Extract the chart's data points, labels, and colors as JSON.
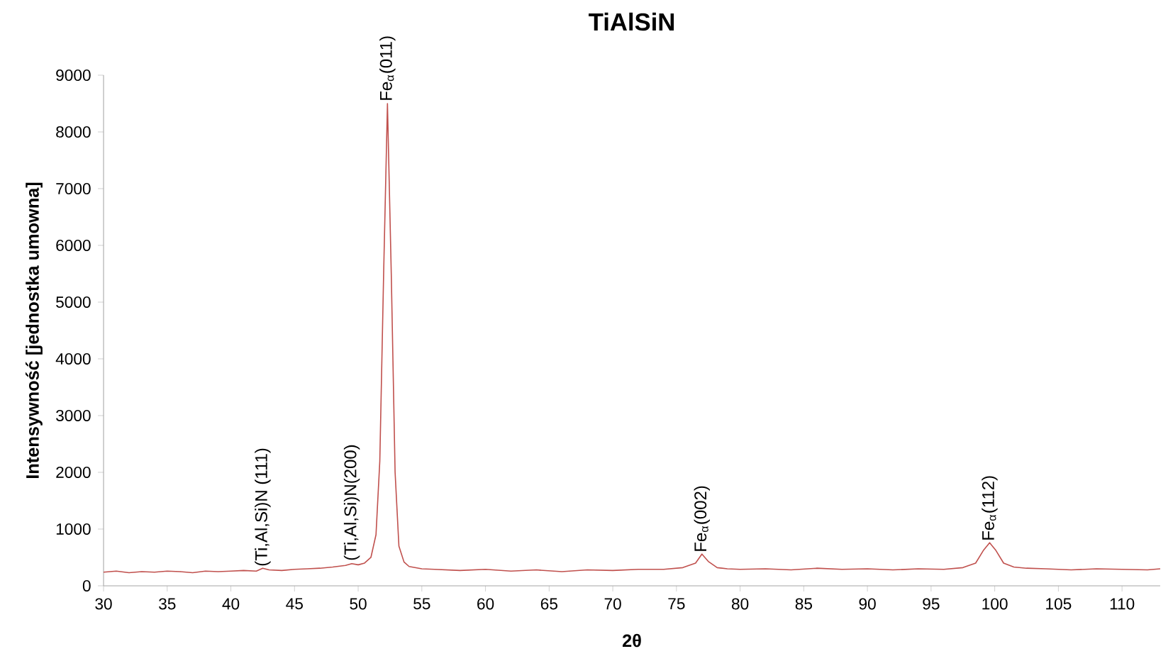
{
  "chart_data": {
    "type": "line",
    "title": "TiAlSiN",
    "xlabel": "2θ",
    "ylabel": "Intensywność [jednostka umowna]",
    "xlim": [
      30,
      113
    ],
    "ylim": [
      0,
      9000
    ],
    "xticks": [
      30,
      35,
      40,
      45,
      50,
      55,
      60,
      65,
      70,
      75,
      80,
      85,
      90,
      95,
      100,
      105,
      110
    ],
    "yticks": [
      0,
      1000,
      2000,
      3000,
      4000,
      5000,
      6000,
      7000,
      8000,
      9000
    ],
    "grid": false,
    "marker": "none",
    "line_style": "solid",
    "annotations": [
      {
        "text": "(Ti,Al,Si)N (111)",
        "x": 42.5,
        "y": 300
      },
      {
        "text": "(Ti,Al,Si)N(200)",
        "x": 49.5,
        "y": 400
      },
      {
        "text": "Fe$_{α}$(011)",
        "x": 52.3,
        "y": 8500
      },
      {
        "text": "Fe$_{α}$(002)",
        "x": 77,
        "y": 550
      },
      {
        "text": "Fe$_{α}$(112)",
        "x": 99.6,
        "y": 750
      }
    ],
    "series": [
      {
        "color": "#c0504d",
        "x": [
          30,
          31,
          32,
          33,
          34,
          35,
          36,
          37,
          38,
          39,
          40,
          41,
          42,
          42.5,
          43,
          44,
          45,
          46,
          47,
          48,
          49,
          49.5,
          50,
          50.5,
          51,
          51.4,
          51.7,
          52.0,
          52.3,
          52.6,
          52.9,
          53.2,
          53.6,
          54,
          55,
          56,
          58,
          60,
          62,
          64,
          66,
          68,
          70,
          72,
          74,
          75.5,
          76.5,
          77,
          77.5,
          78.2,
          79,
          80,
          82,
          84,
          86,
          88,
          90,
          92,
          94,
          96,
          97.5,
          98.5,
          99.1,
          99.6,
          100.1,
          100.7,
          101.5,
          102.5,
          104,
          106,
          108,
          110,
          112,
          113
        ],
        "values": [
          240,
          260,
          230,
          250,
          240,
          260,
          250,
          230,
          260,
          250,
          260,
          270,
          260,
          310,
          280,
          270,
          290,
          300,
          310,
          330,
          360,
          390,
          370,
          400,
          500,
          900,
          2200,
          5500,
          8500,
          5500,
          2000,
          700,
          420,
          340,
          300,
          290,
          270,
          290,
          260,
          280,
          250,
          280,
          270,
          290,
          290,
          320,
          400,
          560,
          430,
          320,
          300,
          290,
          300,
          280,
          310,
          290,
          300,
          280,
          300,
          290,
          320,
          400,
          620,
          760,
          620,
          400,
          330,
          310,
          300,
          280,
          300,
          290,
          280,
          300
        ]
      }
    ]
  }
}
